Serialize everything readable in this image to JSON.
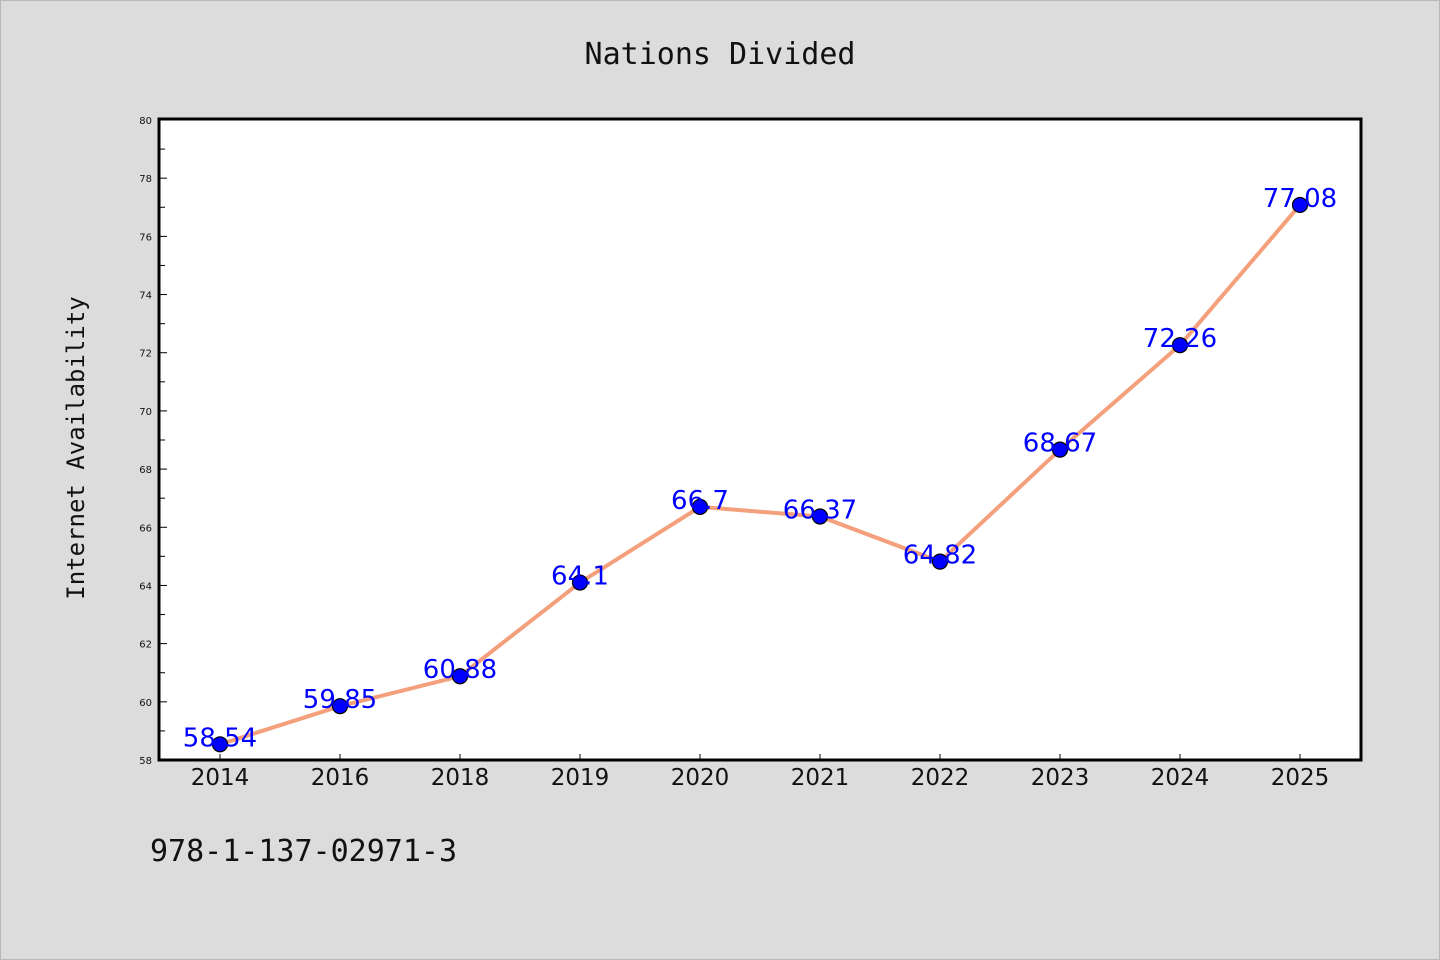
{
  "chart_data": {
    "type": "line",
    "title": "Nations Divided",
    "xlabel": "",
    "ylabel": "Internet Availability",
    "categories": [
      "2014",
      "2016",
      "2018",
      "2019",
      "2020",
      "2021",
      "2022",
      "2023",
      "2024",
      "2025"
    ],
    "series": [
      {
        "values": [
          58.54,
          59.85,
          60.88,
          64.1,
          66.7,
          66.37,
          64.82,
          68.67,
          72.26,
          77.08
        ],
        "line_color": "#f4a07c",
        "marker_color": "#0000ff"
      }
    ],
    "data_labels": [
      "58.54",
      "59.85",
      "60.88",
      "64.1",
      "66.7",
      "66.37",
      "64.82",
      "68.67",
      "72.26",
      "77.08"
    ],
    "ylim": [
      58,
      80
    ],
    "yticks": [
      58,
      60,
      62,
      64,
      66,
      68,
      70,
      72,
      74,
      76,
      78,
      80
    ],
    "grid": false,
    "legend": "none"
  },
  "footer": {
    "isbn": "978-1-137-02971-3"
  },
  "colors": {
    "background": "#dcdcdc",
    "plot_background": "#ffffff",
    "label_color": "#0000ff"
  }
}
